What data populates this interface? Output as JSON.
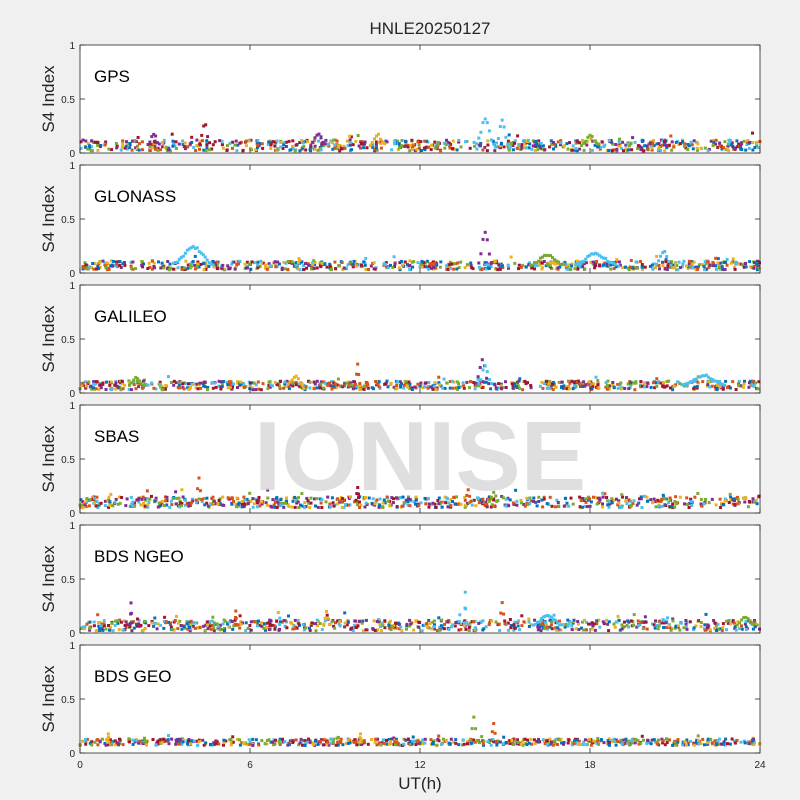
{
  "figure": {
    "title": "HNLE20250127",
    "watermark": "IONISE",
    "xlabel": "UT(h)",
    "background": "#f0f0f0",
    "axes_color": "#262626",
    "plot_background": "#ffffff"
  },
  "chart_data": {
    "type": "scatter",
    "title": "HNLE20250127",
    "xlabel": "UT(h)",
    "ylabel": "S4 Index",
    "xlim": [
      0,
      24
    ],
    "ylim": [
      0,
      1
    ],
    "xticks": [
      "0",
      "6",
      "12",
      "18",
      "24"
    ],
    "yticks": [
      "0",
      "0.5",
      "1"
    ],
    "grid": false,
    "series_colors": [
      "#0072bd",
      "#d95319",
      "#edb120",
      "#7e2f8e",
      "#77ac30",
      "#4dbeee",
      "#a2142f"
    ],
    "panels": [
      {
        "name": "GPS",
        "baseline": 0.07,
        "spread": 0.05,
        "spikes": [
          {
            "x": 4.4,
            "peak": 0.28,
            "width": 0.35,
            "color": "#a2142f"
          },
          {
            "x": 14.3,
            "peak": 0.32,
            "width": 0.6,
            "color": "#4dbeee"
          },
          {
            "x": 14.9,
            "peak": 0.3,
            "width": 0.4,
            "color": "#4dbeee"
          },
          {
            "x": 2.6,
            "peak": 0.18,
            "width": 0.4,
            "color": "#7e2f8e"
          },
          {
            "x": 8.4,
            "peak": 0.18,
            "width": 0.5,
            "color": "#7e2f8e"
          },
          {
            "x": 10.5,
            "peak": 0.17,
            "width": 0.5,
            "color": "#edb120"
          },
          {
            "x": 18.0,
            "peak": 0.16,
            "width": 0.6,
            "color": "#77ac30"
          }
        ]
      },
      {
        "name": "GLONASS",
        "baseline": 0.07,
        "spread": 0.04,
        "spikes": [
          {
            "x": 14.3,
            "peak": 0.38,
            "width": 0.45,
            "color": "#7e2f8e"
          },
          {
            "x": 4.0,
            "peak": 0.24,
            "width": 1.4,
            "color": "#4dbeee"
          },
          {
            "x": 16.5,
            "peak": 0.16,
            "width": 1.2,
            "color": "#77ac30"
          },
          {
            "x": 18.2,
            "peak": 0.18,
            "width": 1.4,
            "color": "#4dbeee"
          },
          {
            "x": 20.6,
            "peak": 0.2,
            "width": 0.5,
            "color": "#4dbeee"
          }
        ]
      },
      {
        "name": "GALILEO",
        "baseline": 0.07,
        "spread": 0.04,
        "spikes": [
          {
            "x": 14.2,
            "peak": 0.3,
            "width": 0.45,
            "color": "#7e2f8e"
          },
          {
            "x": 14.3,
            "peak": 0.25,
            "width": 0.45,
            "color": "#4dbeee"
          },
          {
            "x": 9.8,
            "peak": 0.26,
            "width": 0.15,
            "color": "#d95319"
          },
          {
            "x": 7.6,
            "peak": 0.16,
            "width": 0.5,
            "color": "#edb120"
          },
          {
            "x": 2.0,
            "peak": 0.14,
            "width": 0.5,
            "color": "#77ac30"
          },
          {
            "x": 22.0,
            "peak": 0.16,
            "width": 1.5,
            "color": "#4dbeee"
          }
        ]
      },
      {
        "name": "SBAS",
        "baseline": 0.1,
        "spread": 0.05,
        "spikes": [
          {
            "x": 4.2,
            "peak": 0.32,
            "width": 0.2,
            "color": "#d95319"
          },
          {
            "x": 9.8,
            "peak": 0.24,
            "width": 0.12,
            "color": "#a2142f"
          },
          {
            "x": 13.7,
            "peak": 0.22,
            "width": 0.2,
            "color": "#d95319"
          },
          {
            "x": 14.6,
            "peak": 0.2,
            "width": 0.3,
            "color": "#77ac30"
          }
        ]
      },
      {
        "name": "BDS NGEO",
        "baseline": 0.07,
        "spread": 0.05,
        "spikes": [
          {
            "x": 13.6,
            "peak": 0.37,
            "width": 0.05,
            "color": "#4dbeee"
          },
          {
            "x": 14.9,
            "peak": 0.28,
            "width": 0.2,
            "color": "#d95319"
          },
          {
            "x": 1.8,
            "peak": 0.28,
            "width": 0.05,
            "color": "#7e2f8e"
          },
          {
            "x": 5.5,
            "peak": 0.2,
            "width": 0.05,
            "color": "#d95319"
          },
          {
            "x": 8.7,
            "peak": 0.2,
            "width": 0.2,
            "color": "#edb120"
          },
          {
            "x": 16.5,
            "peak": 0.16,
            "width": 1.0,
            "color": "#4dbeee"
          },
          {
            "x": 23.5,
            "peak": 0.15,
            "width": 0.6,
            "color": "#77ac30"
          }
        ]
      },
      {
        "name": "BDS GEO",
        "baseline": 0.1,
        "spread": 0.03,
        "spikes": [
          {
            "x": 13.9,
            "peak": 0.34,
            "width": 0.25,
            "color": "#77ac30"
          },
          {
            "x": 14.6,
            "peak": 0.27,
            "width": 0.2,
            "color": "#d95319"
          },
          {
            "x": 1.0,
            "peak": 0.18,
            "width": 0.05,
            "color": "#edb120"
          },
          {
            "x": 9.9,
            "peak": 0.17,
            "width": 0.05,
            "color": "#edb120"
          }
        ]
      }
    ]
  }
}
